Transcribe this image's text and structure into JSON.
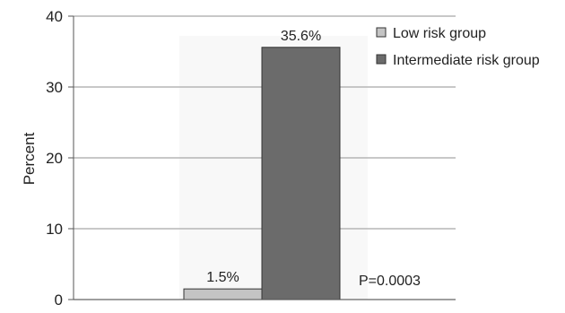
{
  "chart_data": {
    "type": "bar",
    "title": "",
    "xlabel": "",
    "ylabel": "Percent",
    "ylim": [
      0,
      40
    ],
    "yticks": [
      0,
      10,
      20,
      30,
      40
    ],
    "grid": true,
    "legend_position": "top-right",
    "series": [
      {
        "name": "Low risk group",
        "value": 1.5,
        "label": "1.5%",
        "color": "#c4c4c4"
      },
      {
        "name": "Intermediate risk group",
        "value": 35.6,
        "label": "35.6%",
        "color": "#6b6b6b"
      }
    ],
    "annotation": "P=0.0003"
  }
}
